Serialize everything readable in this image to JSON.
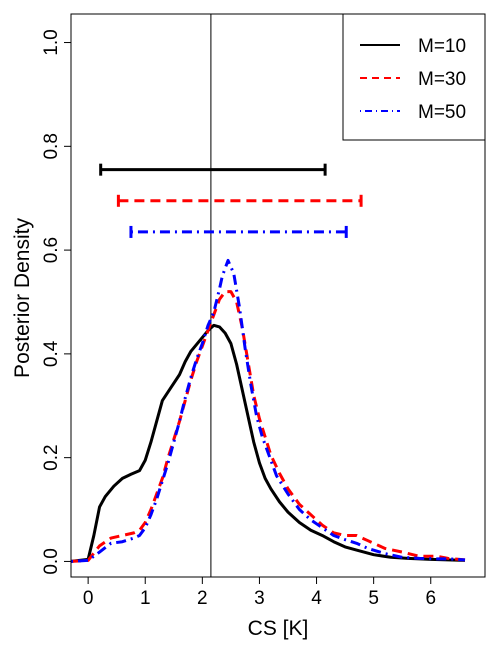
{
  "chart_data": {
    "type": "line",
    "xlabel": "CS [K]",
    "ylabel": "Posterior Density",
    "xlim": [
      -0.3,
      6.95
    ],
    "ylim": [
      -0.03,
      1.055
    ],
    "xticks": [
      "0",
      "1",
      "2",
      "3",
      "4",
      "5",
      "6"
    ],
    "yticks": [
      "0.0",
      "0.2",
      "0.4",
      "0.6",
      "0.8",
      "1.0"
    ],
    "legend_position": "top-right",
    "vline_x": 2.15,
    "series": [
      {
        "name": "M=10",
        "color": "#000000",
        "dash": "solid",
        "x": [
          -0.3,
          0.0,
          0.1,
          0.2,
          0.3,
          0.45,
          0.6,
          0.75,
          0.9,
          1.0,
          1.1,
          1.2,
          1.3,
          1.45,
          1.6,
          1.7,
          1.8,
          1.95,
          2.1,
          2.2,
          2.3,
          2.4,
          2.5,
          2.6,
          2.7,
          2.8,
          2.9,
          3.0,
          3.1,
          3.2,
          3.35,
          3.5,
          3.7,
          3.9,
          4.1,
          4.3,
          4.5,
          4.7,
          5.0,
          5.3,
          5.6,
          6.0,
          6.3,
          6.6
        ],
        "y": [
          0.0,
          0.004,
          0.05,
          0.105,
          0.125,
          0.145,
          0.16,
          0.168,
          0.175,
          0.195,
          0.23,
          0.27,
          0.31,
          0.335,
          0.36,
          0.385,
          0.405,
          0.425,
          0.445,
          0.455,
          0.452,
          0.44,
          0.42,
          0.38,
          0.33,
          0.28,
          0.23,
          0.19,
          0.16,
          0.14,
          0.115,
          0.095,
          0.075,
          0.06,
          0.05,
          0.038,
          0.028,
          0.022,
          0.013,
          0.008,
          0.006,
          0.004,
          0.003,
          0.002
        ]
      },
      {
        "name": "M=30",
        "color": "#ff0000",
        "dash": "dashed",
        "x": [
          -0.3,
          0.0,
          0.2,
          0.4,
          0.6,
          0.8,
          0.9,
          1.0,
          1.1,
          1.2,
          1.3,
          1.4,
          1.5,
          1.6,
          1.7,
          1.8,
          1.9,
          2.0,
          2.1,
          2.2,
          2.3,
          2.4,
          2.5,
          2.6,
          2.7,
          2.8,
          2.9,
          3.0,
          3.1,
          3.2,
          3.35,
          3.5,
          3.7,
          3.9,
          4.1,
          4.3,
          4.5,
          4.7,
          4.9,
          5.2,
          5.5,
          5.8,
          6.1,
          6.3,
          6.6
        ],
        "y": [
          0.0,
          0.002,
          0.03,
          0.045,
          0.05,
          0.055,
          0.06,
          0.075,
          0.1,
          0.13,
          0.16,
          0.2,
          0.235,
          0.27,
          0.31,
          0.35,
          0.385,
          0.415,
          0.445,
          0.475,
          0.505,
          0.52,
          0.52,
          0.5,
          0.45,
          0.385,
          0.32,
          0.275,
          0.24,
          0.205,
          0.17,
          0.14,
          0.11,
          0.09,
          0.07,
          0.055,
          0.05,
          0.05,
          0.04,
          0.025,
          0.018,
          0.01,
          0.01,
          0.006,
          0.003
        ]
      },
      {
        "name": "M=50",
        "color": "#0000ff",
        "dash": "dotdash",
        "x": [
          -0.3,
          0.0,
          0.2,
          0.4,
          0.6,
          0.8,
          0.9,
          1.0,
          1.1,
          1.2,
          1.3,
          1.4,
          1.5,
          1.6,
          1.7,
          1.8,
          1.9,
          2.0,
          2.1,
          2.2,
          2.3,
          2.35,
          2.45,
          2.55,
          2.65,
          2.75,
          2.85,
          2.95,
          3.05,
          3.15,
          3.3,
          3.5,
          3.7,
          3.9,
          4.1,
          4.3,
          4.5,
          4.7,
          4.9,
          5.2,
          5.5,
          5.8,
          6.1,
          6.3,
          6.6
        ],
        "y": [
          0.0,
          0.002,
          0.018,
          0.035,
          0.038,
          0.045,
          0.05,
          0.065,
          0.09,
          0.12,
          0.155,
          0.19,
          0.23,
          0.27,
          0.315,
          0.355,
          0.39,
          0.42,
          0.455,
          0.48,
          0.525,
          0.55,
          0.58,
          0.555,
          0.49,
          0.41,
          0.34,
          0.28,
          0.24,
          0.21,
          0.165,
          0.13,
          0.1,
          0.08,
          0.065,
          0.05,
          0.042,
          0.035,
          0.025,
          0.015,
          0.008,
          0.006,
          0.005,
          0.005,
          0.003
        ]
      }
    ],
    "intervals": [
      {
        "name": "M=10",
        "x_low": 0.22,
        "x_high": 4.15,
        "y": 0.755
      },
      {
        "name": "M=30",
        "x_low": 0.53,
        "x_high": 4.78,
        "y": 0.695
      },
      {
        "name": "M=50",
        "x_low": 0.75,
        "x_high": 4.52,
        "y": 0.635
      }
    ]
  }
}
